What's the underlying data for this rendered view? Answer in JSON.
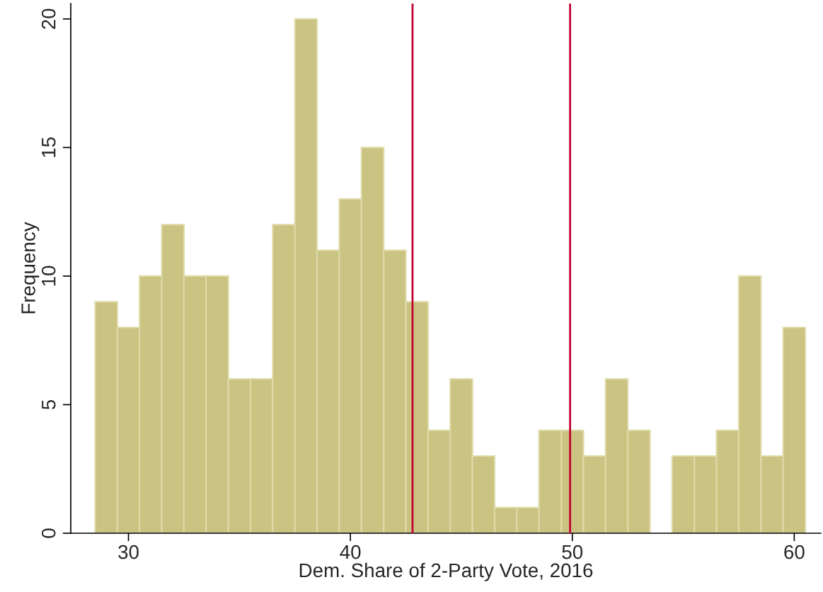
{
  "chart_data": {
    "type": "histogram",
    "xlabel": "Dem. Share of 2-Party Vote, 2016",
    "ylabel": "Frequency",
    "bins": [
      28.5,
      29.5,
      30.5,
      31.5,
      32.5,
      33.5,
      34.5,
      35.5,
      36.5,
      37.5,
      38.5,
      39.5,
      40.5,
      41.5,
      42.5,
      43.5,
      44.5,
      45.5,
      46.5,
      47.5,
      48.5,
      49.5,
      50.5,
      51.5,
      52.5,
      53.5,
      54.5,
      55.5,
      56.5,
      57.5,
      58.5,
      59.5,
      60.5
    ],
    "values": [
      9,
      8,
      10,
      12,
      10,
      10,
      6,
      6,
      12,
      20,
      11,
      13,
      15,
      11,
      9,
      4,
      6,
      3,
      1,
      1,
      4,
      4,
      3,
      6,
      4,
      0,
      3,
      3,
      4,
      10,
      3,
      8
    ],
    "color": "#cbc382",
    "xlim": [
      27.4,
      61.2
    ],
    "ylim": [
      0,
      20.6
    ],
    "xticks": [
      30,
      40,
      50,
      60
    ],
    "yticks": [
      0,
      5,
      10,
      15,
      20
    ],
    "ref_lines": [
      {
        "axis": "x",
        "value": 42.8,
        "color": "#c10534"
      },
      {
        "axis": "x",
        "value": 49.9,
        "color": "#c10534"
      }
    ],
    "grid": false
  }
}
